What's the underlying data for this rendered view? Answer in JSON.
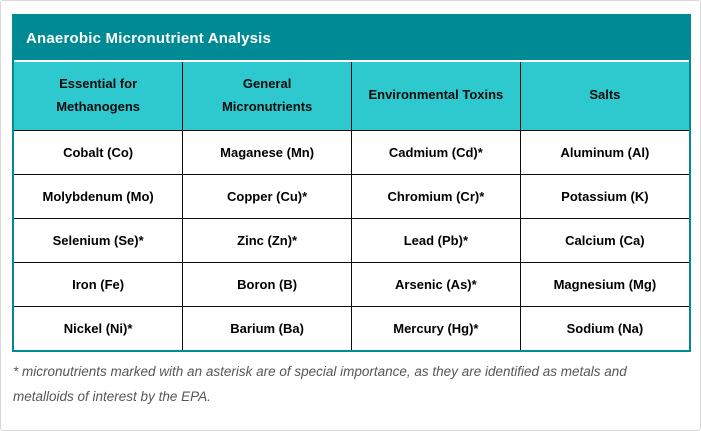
{
  "title": "Anaerobic Micronutrient Analysis",
  "footnote": "* micronutrients marked with an asterisk are of special importance, as they are identified as metals and metalloids of interest by the EPA.",
  "table": {
    "columns": [
      "Essential for Methanogens",
      "General Micronutrients",
      "Environmental Toxins",
      "Salts"
    ],
    "rows": [
      [
        "Cobalt (Co)",
        "Maganese (Mn)",
        "Cadmium (Cd)*",
        "Aluminum (Al)"
      ],
      [
        "Molybdenum (Mo)",
        "Copper (Cu)*",
        "Chromium (Cr)*",
        "Potassium (K)"
      ],
      [
        "Selenium (Se)*",
        "Zinc (Zn)*",
        "Lead (Pb)*",
        "Calcium (Ca)"
      ],
      [
        "Iron (Fe)",
        "Boron (B)",
        "Arsenic (As)*",
        "Magnesium (Mg)"
      ],
      [
        "Nickel (Ni)*",
        "Barium (Ba)",
        "Mercury (Hg)*",
        "Sodium (Na)"
      ]
    ]
  },
  "chart_data": {
    "type": "table",
    "title": "Anaerobic Micronutrient Analysis",
    "columns": [
      "Essential for Methanogens",
      "General Micronutrients",
      "Environmental Toxins",
      "Salts"
    ],
    "rows": [
      [
        "Cobalt (Co)",
        "Maganese (Mn)",
        "Cadmium (Cd)*",
        "Aluminum (Al)"
      ],
      [
        "Molybdenum (Mo)",
        "Copper (Cu)*",
        "Chromium (Cr)*",
        "Potassium (K)"
      ],
      [
        "Selenium (Se)*",
        "Zinc (Zn)*",
        "Lead (Pb)*",
        "Calcium (Ca)"
      ],
      [
        "Iron (Fe)",
        "Boron (B)",
        "Arsenic (As)*",
        "Magnesium (Mg)"
      ],
      [
        "Nickel (Ni)*",
        "Barium (Ba)",
        "Mercury (Hg)*",
        "Sodium (Na)"
      ]
    ],
    "footnote": "* micronutrients marked with an asterisk are of special importance, as they are identified as metals and metalloids of interest by the EPA."
  },
  "colors": {
    "title_bar": "#008A93",
    "header_row": "#2EC9CE",
    "grid_line": "#0B0B0B",
    "footnote_text": "#55565A"
  }
}
